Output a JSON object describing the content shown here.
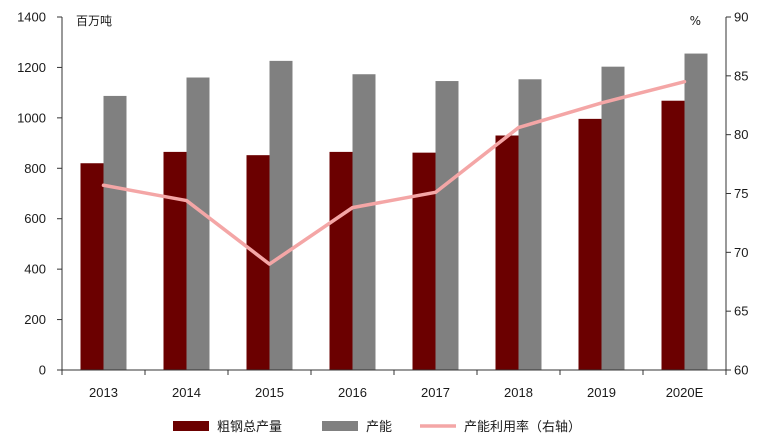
{
  "chart_data": {
    "type": "bar",
    "categories": [
      "2013",
      "2014",
      "2015",
      "2016",
      "2017",
      "2018",
      "2019",
      "2020E"
    ],
    "series": [
      {
        "name": "粗钢总产量",
        "type": "bar",
        "axis": "left",
        "color": "#6b0000",
        "values": [
          820,
          865,
          852,
          865,
          862,
          930,
          996,
          1068
        ]
      },
      {
        "name": "产能",
        "type": "bar",
        "axis": "left",
        "color": "#808080",
        "values": [
          1087,
          1160,
          1226,
          1173,
          1146,
          1153,
          1203,
          1255
        ]
      },
      {
        "name": "产能利用率（右轴）",
        "type": "line",
        "axis": "right",
        "color": "#f4a6a6",
        "values": [
          75.7,
          74.4,
          69.0,
          73.8,
          75.1,
          80.6,
          82.7,
          84.5
        ]
      }
    ],
    "y_left": {
      "unit": "百万吨",
      "min": 0,
      "max": 1400,
      "ticks": [
        0,
        200,
        400,
        600,
        800,
        1000,
        1200,
        1400
      ]
    },
    "y_right": {
      "unit": "%",
      "min": 60,
      "max": 90,
      "ticks": [
        60,
        65,
        70,
        75,
        80,
        85,
        90
      ]
    },
    "title": "",
    "xlabel": "",
    "ylabel": "",
    "grid": false,
    "legend": "bottom"
  }
}
